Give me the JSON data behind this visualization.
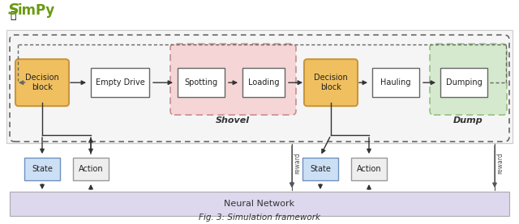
{
  "title": "Fig. 3: Simulation framework",
  "bg_color": "#ffffff",
  "top_bg_color": "#f5f5f5",
  "top_bg_edge": "#cccccc",
  "decision_block_color": "#f0c060",
  "decision_block_edge": "#c8963c",
  "plain_box_color": "#ffffff",
  "plain_box_edge": "#666666",
  "shovel_bg": "#f5d0d0",
  "shovel_edge": "#c08080",
  "dump_bg": "#d0e8c8",
  "dump_edge": "#88b870",
  "state_box_color": "#cce0f5",
  "state_box_edge": "#7090c0",
  "action_box_color": "#eeeeee",
  "action_box_edge": "#999999",
  "nn_box_color": "#ddd8ee",
  "nn_box_edge": "#aaaaaa",
  "dashed_color": "#666666",
  "arrow_color": "#333333",
  "reward_color": "#555555",
  "simpy_color": "#6a9a10",
  "shovel_label": "Shovel",
  "dump_label": "Dump",
  "nn_label": "Neural Network"
}
